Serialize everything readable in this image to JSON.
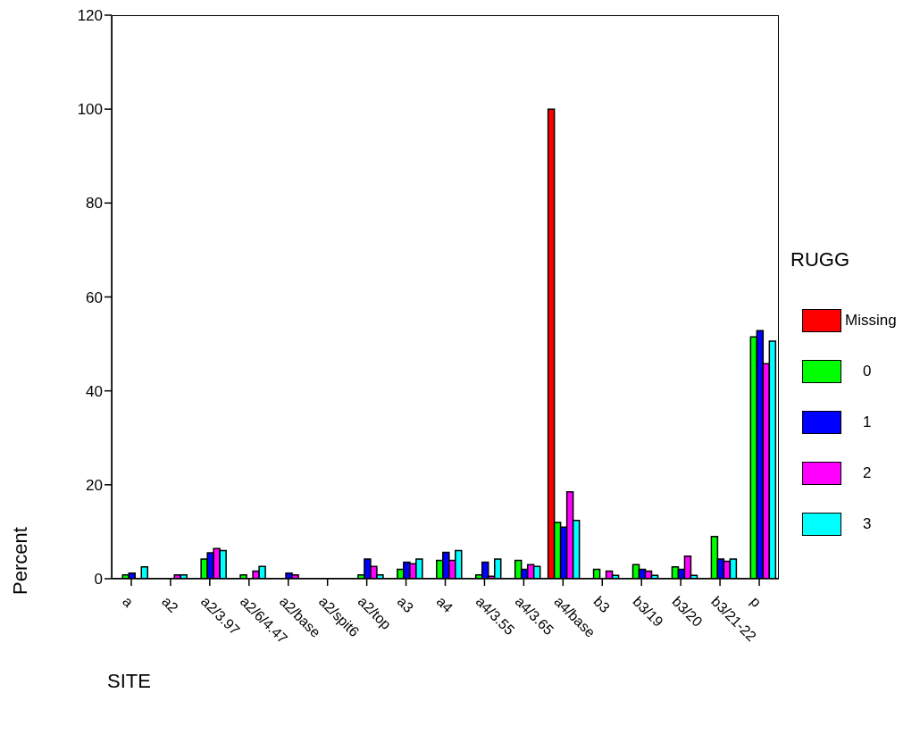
{
  "chart_data": {
    "type": "bar",
    "xlabel": "SITE",
    "ylabel": "Percent",
    "legend_title": "RUGG",
    "legend": "right",
    "categories": [
      "a",
      "a2",
      "a2/3.97",
      "a2/6/4.47",
      "a2/base",
      "a2/spit6",
      "a2/top",
      "a3",
      "a4",
      "a4/3.55",
      "a4/3.65",
      "a4/base",
      "b3",
      "b3/19",
      "b3/20",
      "b3/21-22",
      "p"
    ],
    "ylim": [
      0,
      120
    ],
    "yticks": [
      0,
      20,
      40,
      60,
      80,
      100,
      120
    ],
    "series": [
      {
        "name": "Missing",
        "color": "#ff0000",
        "values": [
          null,
          null,
          null,
          null,
          null,
          null,
          null,
          null,
          null,
          null,
          null,
          100,
          null,
          null,
          null,
          null,
          null
        ]
      },
      {
        "name": "0",
        "color": "#00ff00",
        "values": [
          0.8,
          null,
          4.2,
          0.8,
          null,
          null,
          0.8,
          2.0,
          3.9,
          0.8,
          3.9,
          12,
          2.0,
          3.0,
          2.5,
          9,
          51.5
        ]
      },
      {
        "name": "1",
        "color": "#0000ff",
        "values": [
          1.2,
          null,
          5.5,
          null,
          1.2,
          null,
          4.2,
          3.5,
          5.6,
          3.5,
          2.0,
          11,
          null,
          2.0,
          2.0,
          4.2,
          52.8
        ]
      },
      {
        "name": "2",
        "color": "#ff00ff",
        "values": [
          null,
          0.8,
          6.4,
          1.6,
          0.8,
          null,
          2.6,
          3.2,
          3.9,
          0.5,
          3.0,
          18.5,
          1.6,
          1.6,
          4.8,
          3.7,
          45.8
        ]
      },
      {
        "name": "3",
        "color": "#00ffff",
        "values": [
          2.5,
          0.8,
          6.0,
          2.6,
          null,
          null,
          0.8,
          4.2,
          6.0,
          4.2,
          2.6,
          12.4,
          0.7,
          0.7,
          0.7,
          4.2,
          50.6
        ]
      }
    ]
  }
}
